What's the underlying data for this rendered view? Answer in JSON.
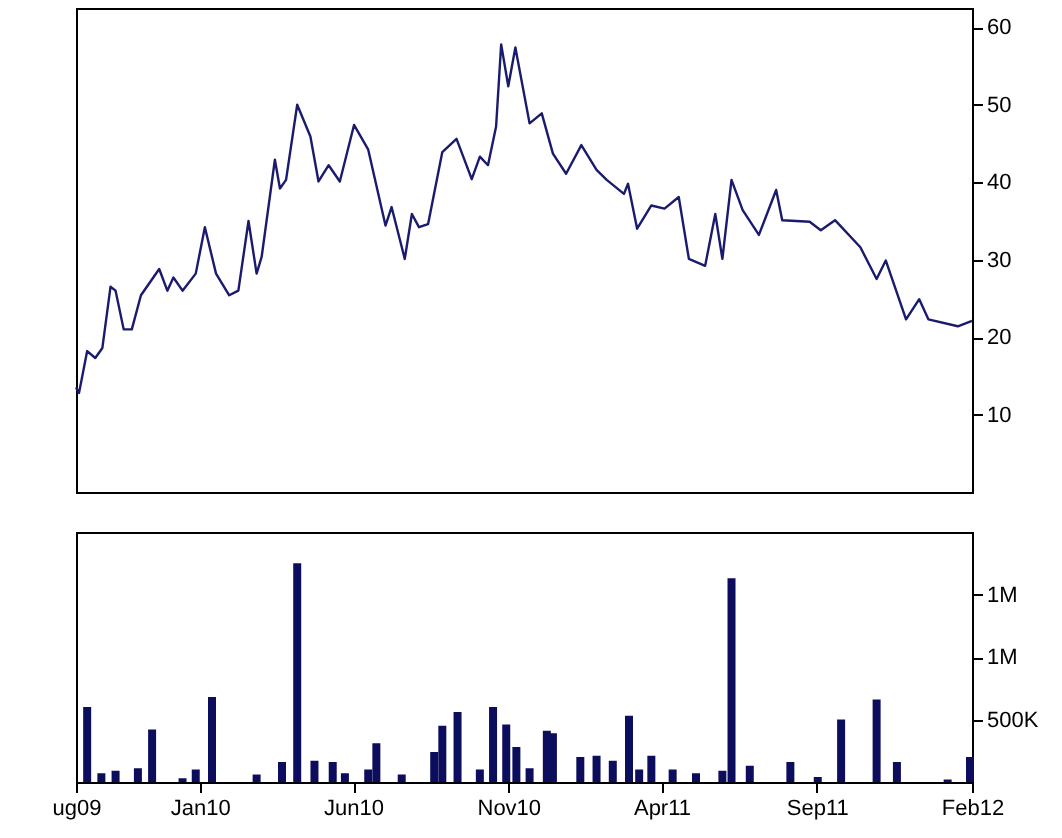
{
  "chart_data": [
    {
      "type": "line",
      "tick_labels": "y",
      "grid": false,
      "color": "#1a1a6e",
      "xlim": [
        "2009-09-01",
        "2012-02-01"
      ],
      "ylim": [
        0,
        62.5
      ],
      "yticks": [
        10,
        20,
        30,
        40,
        50,
        60
      ],
      "x": [
        "2009-09-01",
        "2009-09-04",
        "2009-09-12",
        "2009-09-20",
        "2009-09-27",
        "2009-10-05",
        "2009-10-10",
        "2009-10-18",
        "2009-10-26",
        "2009-11-04",
        "2009-11-22",
        "2009-11-30",
        "2009-12-06",
        "2009-12-15",
        "2009-12-28",
        "2010-01-06",
        "2010-01-17",
        "2010-01-30",
        "2010-02-08",
        "2010-02-18",
        "2010-02-26",
        "2010-03-03",
        "2010-03-16",
        "2010-03-21",
        "2010-03-27",
        "2010-04-07",
        "2010-04-20",
        "2010-04-28",
        "2010-05-08",
        "2010-05-19",
        "2010-06-02",
        "2010-06-16",
        "2010-07-03",
        "2010-07-09",
        "2010-07-22",
        "2010-07-29",
        "2010-08-05",
        "2010-08-14",
        "2010-08-28",
        "2010-09-11",
        "2010-09-26",
        "2010-10-04",
        "2010-10-12",
        "2010-10-20",
        "2010-10-25",
        "2010-11-01",
        "2010-11-08",
        "2010-11-22",
        "2010-12-04",
        "2010-12-15",
        "2010-12-28",
        "2011-01-12",
        "2011-01-27",
        "2011-02-06",
        "2011-02-23",
        "2011-02-27",
        "2011-03-08",
        "2011-03-22",
        "2011-04-04",
        "2011-04-18",
        "2011-04-28",
        "2011-05-14",
        "2011-05-24",
        "2011-05-31",
        "2011-06-09",
        "2011-06-20",
        "2011-07-06",
        "2011-07-23",
        "2011-07-29",
        "2011-08-25",
        "2011-09-05",
        "2011-09-19",
        "2011-10-14",
        "2011-10-30",
        "2011-11-08",
        "2011-11-28",
        "2011-12-11",
        "2011-12-20",
        "2012-01-18",
        "2012-02-01"
      ],
      "values": [
        13.5,
        12.8,
        18.2,
        17.3,
        18.6,
        26.5,
        26,
        21,
        21,
        25.4,
        28.8,
        26,
        27.7,
        26,
        28.2,
        34.2,
        28.2,
        25.4,
        26,
        35,
        28.2,
        30.4,
        42.9,
        39.2,
        40.3,
        50,
        45.9,
        40.1,
        42.2,
        40.1,
        47.4,
        44.2,
        34.4,
        36.8,
        30.1,
        35.9,
        34.2,
        34.6,
        43.9,
        45.6,
        40.4,
        43.3,
        42.2,
        47.2,
        57.8,
        52.4,
        57.4,
        47.6,
        48.9,
        43.7,
        41.1,
        44.8,
        41.6,
        40.3,
        38.5,
        39.8,
        34,
        37,
        36.6,
        38.1,
        30.1,
        29.2,
        35.9,
        30.1,
        40.3,
        36.4,
        33.2,
        39,
        35.1,
        34.9,
        33.8,
        35.1,
        31.6,
        27.5,
        29.9,
        22.3,
        24.9,
        22.3,
        21.4,
        22.1
      ]
    },
    {
      "type": "bar",
      "grid": false,
      "color": "#0d0d5e",
      "xlim": [
        "2009-09-01",
        "2012-02-01"
      ],
      "xticks": [
        {
          "value": "2009-09-01",
          "label": "ug09"
        },
        {
          "value": "2010-01-01",
          "label": "Jan10"
        },
        {
          "value": "2010-06-01",
          "label": "Jun10"
        },
        {
          "value": "2010-11-01",
          "label": "Nov10"
        },
        {
          "value": "2011-04-01",
          "label": "Apr11"
        },
        {
          "value": "2011-09-01",
          "label": "Sep11"
        },
        {
          "value": "2012-02-01",
          "label": "Feb12"
        }
      ],
      "ylim": [
        0,
        2000000
      ],
      "yticks": [
        {
          "value": 500000,
          "label": "500K"
        },
        {
          "value": 1000000,
          "label": "1M"
        },
        {
          "value": 1500000,
          "label": "1M"
        }
      ],
      "x": [
        "2009-09-12",
        "2009-09-26",
        "2009-10-10",
        "2009-11-01",
        "2009-11-15",
        "2009-12-15",
        "2009-12-28",
        "2010-01-13",
        "2010-02-26",
        "2010-03-23",
        "2010-04-07",
        "2010-04-24",
        "2010-05-12",
        "2010-05-24",
        "2010-06-16",
        "2010-06-24",
        "2010-07-19",
        "2010-08-20",
        "2010-08-28",
        "2010-09-12",
        "2010-10-04",
        "2010-10-17",
        "2010-10-30",
        "2010-11-09",
        "2010-11-22",
        "2010-12-09",
        "2010-12-15",
        "2011-01-11",
        "2011-01-27",
        "2011-02-12",
        "2011-02-28",
        "2011-03-10",
        "2011-03-22",
        "2011-04-12",
        "2011-05-05",
        "2011-05-31",
        "2011-06-09",
        "2011-06-27",
        "2011-08-06",
        "2011-09-02",
        "2011-09-25",
        "2011-10-30",
        "2011-11-19",
        "2012-01-08",
        "2012-01-30"
      ],
      "values": [
        600000,
        70000,
        90000,
        110000,
        420000,
        30000,
        100000,
        680000,
        60000,
        160000,
        1750000,
        170000,
        160000,
        70000,
        100000,
        310000,
        60000,
        240000,
        450000,
        560000,
        100000,
        600000,
        460000,
        280000,
        110000,
        410000,
        390000,
        200000,
        210000,
        170000,
        530000,
        100000,
        210000,
        100000,
        70000,
        90000,
        1630000,
        130000,
        160000,
        40000,
        500000,
        660000,
        160000,
        20000,
        200000
      ]
    }
  ]
}
